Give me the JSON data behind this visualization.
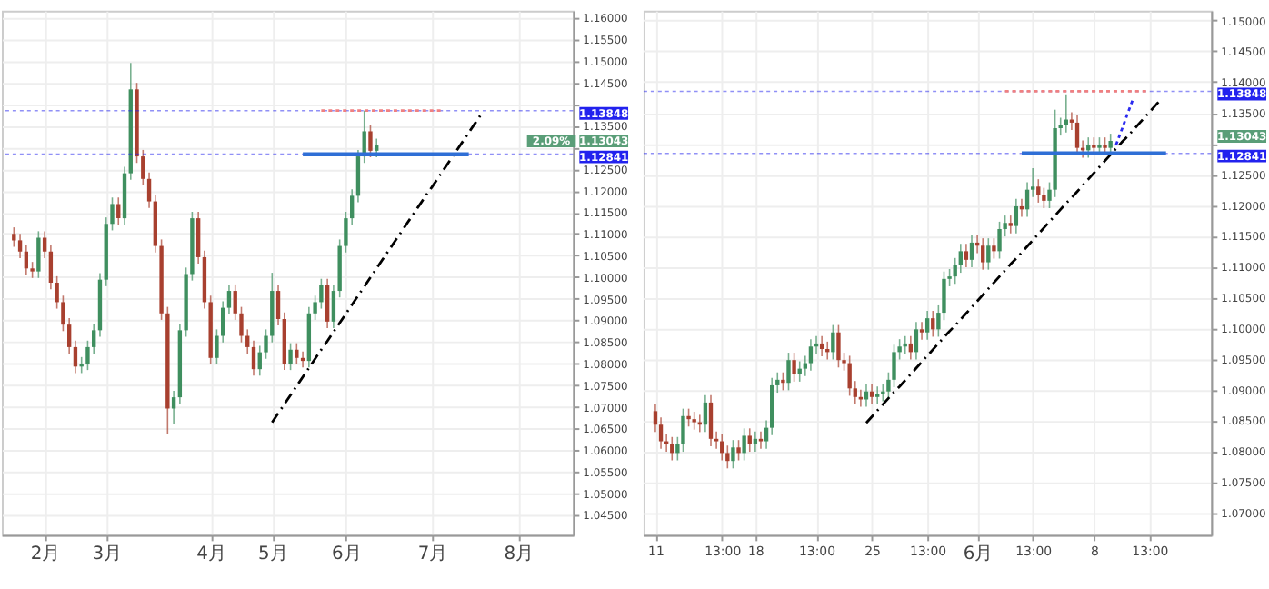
{
  "chart_data": [
    {
      "type": "candlestick",
      "grid": true,
      "categories": [
        null,
        null,
        null,
        null,
        null,
        "2月",
        null,
        null,
        null,
        null,
        null,
        null,
        null,
        null,
        null,
        "3月",
        null,
        null,
        null,
        null,
        null,
        null,
        null,
        null,
        null,
        null,
        null,
        null,
        null,
        null,
        null,
        null,
        "4月",
        null,
        null,
        null,
        null,
        null,
        null,
        null,
        null,
        null,
        "5月",
        null,
        null,
        null,
        null,
        null,
        null,
        null,
        null,
        null,
        null,
        null,
        "6月",
        null,
        null,
        null,
        null,
        null,
        null,
        null,
        null,
        null,
        null,
        null,
        null,
        null,
        "7月",
        null,
        null,
        null,
        null,
        null,
        null,
        null,
        null,
        null,
        null,
        null,
        null,
        null,
        "8月",
        null,
        null,
        null,
        null,
        null,
        null,
        null
      ],
      "ohlc": [
        [
          1.11,
          1.1115,
          1.107,
          1.1085
        ],
        [
          1.1085,
          1.11,
          1.1044,
          1.1059
        ],
        [
          1.1059,
          1.1074,
          1.1005,
          1.102
        ],
        [
          1.102,
          1.1035,
          1.0998,
          1.1013
        ],
        [
          1.1013,
          1.1106,
          1.0998,
          1.1091
        ],
        [
          1.1091,
          1.1106,
          1.1044,
          1.1059
        ],
        [
          1.1059,
          1.1074,
          1.0972,
          1.0987
        ],
        [
          1.0987,
          1.1002,
          1.0927,
          1.0942
        ],
        [
          1.0942,
          1.0957,
          1.0875,
          1.089
        ],
        [
          1.089,
          1.0905,
          1.0823,
          1.0838
        ],
        [
          1.0838,
          1.0853,
          1.0778,
          1.0793
        ],
        [
          1.0793,
          1.0815,
          1.0778,
          1.08
        ],
        [
          1.08,
          1.0853,
          1.0785,
          1.0838
        ],
        [
          1.0838,
          1.0892,
          1.0823,
          1.0877
        ],
        [
          1.0877,
          1.1009,
          1.0862,
          1.0994
        ],
        [
          1.0994,
          1.1138,
          1.0979,
          1.1123
        ],
        [
          1.1123,
          1.1184,
          1.1108,
          1.1169
        ],
        [
          1.1169,
          1.1184,
          1.1121,
          1.1136
        ],
        [
          1.1136,
          1.1255,
          1.1121,
          1.124
        ],
        [
          1.124,
          1.1495,
          1.1225,
          1.1434
        ],
        [
          1.1434,
          1.1449,
          1.1264,
          1.1279
        ],
        [
          1.1279,
          1.1294,
          1.1212,
          1.1227
        ],
        [
          1.1227,
          1.1242,
          1.116,
          1.1175
        ],
        [
          1.1175,
          1.119,
          1.1057,
          1.1072
        ],
        [
          1.1072,
          1.1087,
          1.0901,
          1.0916
        ],
        [
          1.0916,
          1.0931,
          1.0638,
          1.0696
        ],
        [
          1.0696,
          1.0737,
          1.066,
          1.0722
        ],
        [
          1.0722,
          1.0892,
          1.0707,
          1.0877
        ],
        [
          1.0877,
          1.1022,
          1.0862,
          1.1007
        ],
        [
          1.1007,
          1.1151,
          1.0992,
          1.1136
        ],
        [
          1.1136,
          1.1151,
          1.1031,
          1.1046
        ],
        [
          1.1046,
          1.1061,
          1.0927,
          1.0942
        ],
        [
          1.0942,
          1.0957,
          1.0798,
          1.0813
        ],
        [
          1.0813,
          1.0879,
          1.0798,
          1.0864
        ],
        [
          1.0864,
          1.0944,
          1.0849,
          1.0929
        ],
        [
          1.0929,
          1.0983,
          1.0914,
          1.0968
        ],
        [
          1.0968,
          1.0983,
          1.0901,
          1.0916
        ],
        [
          1.0916,
          1.0931,
          1.0849,
          1.0864
        ],
        [
          1.0864,
          1.0879,
          1.0823,
          1.0838
        ],
        [
          1.0838,
          1.0853,
          1.0772,
          1.0787
        ],
        [
          1.0787,
          1.0841,
          1.0772,
          1.0826
        ],
        [
          1.0826,
          1.0879,
          1.0811,
          1.0864
        ],
        [
          1.0864,
          1.101,
          1.0849,
          1.0968
        ],
        [
          1.0968,
          1.0983,
          1.0888,
          1.0903
        ],
        [
          1.0903,
          1.0918,
          1.0785,
          1.08
        ],
        [
          1.08,
          1.0847,
          1.0785,
          1.0832
        ],
        [
          1.0832,
          1.0847,
          1.0798,
          1.0813
        ],
        [
          1.0813,
          1.0828,
          1.0791,
          1.0806
        ],
        [
          1.0806,
          1.0931,
          1.0791,
          1.0916
        ],
        [
          1.0916,
          1.0957,
          1.0901,
          1.0942
        ],
        [
          1.0942,
          1.0996,
          1.0927,
          1.0981
        ],
        [
          1.0981,
          1.0996,
          1.0882,
          1.0897
        ],
        [
          1.0897,
          1.0983,
          1.0882,
          1.0968
        ],
        [
          1.0968,
          1.1087,
          1.0953,
          1.1072
        ],
        [
          1.1072,
          1.1151,
          1.1057,
          1.1136
        ],
        [
          1.1136,
          1.1203,
          1.1121,
          1.1188
        ],
        [
          1.1188,
          1.1294,
          1.1173,
          1.1279
        ],
        [
          1.1279,
          1.1385,
          1.1264,
          1.1337
        ],
        [
          1.1337,
          1.1352,
          1.1277,
          1.1292
        ],
        [
          1.1292,
          1.132,
          1.1277,
          1.13043
        ],
        null,
        null,
        null,
        null,
        null,
        null,
        null,
        null,
        null,
        null,
        null,
        null,
        null,
        null,
        null,
        null,
        null,
        null,
        null,
        null,
        null,
        null,
        null,
        null,
        null,
        null,
        null,
        null,
        null,
        null
      ],
      "ylim": [
        1.0404,
        1.1616
      ],
      "yticks": [
        {
          "value": 1.045,
          "label": "1.04500"
        },
        {
          "value": 1.05,
          "label": "1.05000"
        },
        {
          "value": 1.055,
          "label": "1.05500"
        },
        {
          "value": 1.06,
          "label": "1.06000"
        },
        {
          "value": 1.065,
          "label": "1.06500"
        },
        {
          "value": 1.07,
          "label": "1.07000"
        },
        {
          "value": 1.075,
          "label": "1.07500"
        },
        {
          "value": 1.08,
          "label": "1.08000"
        },
        {
          "value": 1.085,
          "label": "1.08500"
        },
        {
          "value": 1.09,
          "label": "1.09000"
        },
        {
          "value": 1.095,
          "label": "1.09500"
        },
        {
          "value": 1.1,
          "label": "1.10000"
        },
        {
          "value": 1.105,
          "label": "1.10500"
        },
        {
          "value": 1.11,
          "label": "1.11000"
        },
        {
          "value": 1.115,
          "label": "1.11500"
        },
        {
          "value": 1.12,
          "label": "1.12000"
        },
        {
          "value": 1.125,
          "label": "1.12500"
        },
        {
          "value": 1.13,
          "label": null
        },
        {
          "value": 1.135,
          "label": "1.13500"
        },
        {
          "value": 1.14,
          "label": null
        },
        {
          "value": 1.145,
          "label": "1.14500"
        },
        {
          "value": 1.15,
          "label": "1.15000"
        },
        {
          "value": 1.155,
          "label": "1.15500"
        },
        {
          "value": 1.16,
          "label": "1.16000"
        }
      ],
      "series": [
        {
          "type": "line",
          "color": "#000000",
          "line_style": "dashed",
          "values": [
            null,
            null,
            null,
            null,
            null,
            null,
            null,
            null,
            null,
            null,
            null,
            null,
            null,
            null,
            null,
            null,
            null,
            null,
            null,
            null,
            null,
            null,
            null,
            null,
            null,
            null,
            null,
            null,
            null,
            null,
            null,
            null,
            null,
            null,
            null,
            null,
            null,
            null,
            null,
            null,
            null,
            null,
            1.0664,
            1.0685,
            1.0706,
            1.0727,
            1.0748,
            1.0769,
            1.079,
            1.0811,
            1.0832,
            1.0852,
            1.0873,
            1.0894,
            1.0915,
            1.0936,
            1.0957,
            1.0978,
            1.0999,
            1.102,
            1.1041,
            1.1062,
            1.1083,
            1.1104,
            1.1125,
            1.1146,
            1.1167,
            1.1188,
            1.1208,
            1.1229,
            1.125,
            1.1271,
            1.1292,
            1.1313,
            1.1334,
            1.1355,
            1.1376,
            null,
            null,
            null,
            null,
            null,
            null,
            null,
            null,
            null,
            null,
            null,
            null,
            null
          ]
        },
        {
          "type": "line",
          "color": "#f08080",
          "line_style": "dotted",
          "values": [
            null,
            null,
            null,
            null,
            null,
            null,
            null,
            null,
            null,
            null,
            null,
            null,
            null,
            null,
            null,
            null,
            null,
            null,
            null,
            null,
            null,
            null,
            null,
            null,
            null,
            null,
            null,
            null,
            null,
            null,
            null,
            null,
            null,
            null,
            null,
            null,
            null,
            null,
            null,
            null,
            null,
            null,
            null,
            null,
            null,
            null,
            null,
            null,
            null,
            null,
            1.1385,
            1.1385,
            1.1385,
            1.1385,
            1.1385,
            1.1385,
            1.1385,
            1.1385,
            1.1385,
            1.1385,
            1.1385,
            1.1385,
            1.1385,
            1.1385,
            1.1385,
            1.1385,
            1.1385,
            1.1385,
            1.1385,
            1.1385,
            1.1385,
            null,
            null,
            null,
            null,
            null,
            null,
            null,
            null,
            null,
            null,
            null,
            null,
            null,
            null,
            null,
            null,
            null,
            null,
            null
          ]
        },
        {
          "type": "line",
          "color": "#2f6fd6",
          "line_style": "solid",
          "values": [
            null,
            null,
            null,
            null,
            null,
            null,
            null,
            null,
            null,
            null,
            null,
            null,
            null,
            null,
            null,
            null,
            null,
            null,
            null,
            null,
            null,
            null,
            null,
            null,
            null,
            null,
            null,
            null,
            null,
            null,
            null,
            null,
            null,
            null,
            null,
            null,
            null,
            null,
            null,
            null,
            null,
            null,
            null,
            null,
            null,
            null,
            null,
            1.1284,
            1.1284,
            1.1284,
            1.1284,
            1.1284,
            1.1284,
            1.1284,
            1.1284,
            1.1284,
            1.1284,
            1.1284,
            1.1284,
            1.1284,
            1.1284,
            1.1284,
            1.1284,
            1.1284,
            1.1284,
            1.1284,
            1.1284,
            1.1284,
            1.1284,
            1.1284,
            1.1284,
            1.1284,
            1.1284,
            1.1284,
            1.1284,
            null,
            null,
            null,
            null,
            null,
            null,
            null,
            null,
            null,
            null,
            null,
            null,
            null,
            null,
            null
          ]
        }
      ],
      "ref_lines": [
        {
          "axis": "y",
          "value": 1.13848,
          "label": "1.13848",
          "color": "#2222ee",
          "line_style": "dotted"
        },
        {
          "axis": "y",
          "value": 1.12841,
          "label": "1.12841",
          "color": "#2222ee",
          "line_style": "dotted"
        }
      ],
      "annotations": [
        "2.09%",
        "1.13043"
      ]
    },
    {
      "type": "candlestick",
      "grid": true,
      "categories": [
        "11",
        null,
        null,
        null,
        null,
        null,
        null,
        null,
        null,
        null,
        null,
        null,
        "13:00",
        null,
        null,
        null,
        null,
        null,
        "18",
        null,
        null,
        null,
        null,
        null,
        null,
        null,
        null,
        null,
        null,
        "13:00",
        null,
        null,
        null,
        null,
        null,
        null,
        null,
        null,
        null,
        "25",
        null,
        null,
        null,
        null,
        null,
        null,
        null,
        null,
        null,
        "13:00",
        null,
        null,
        null,
        null,
        null,
        null,
        null,
        null,
        "6月",
        null,
        null,
        null,
        null,
        null,
        null,
        null,
        null,
        null,
        "13:00",
        null,
        null,
        null,
        null,
        null,
        null,
        null,
        null,
        null,
        null,
        "8",
        null,
        null,
        null,
        null,
        null,
        null,
        null,
        null,
        null,
        "13:00",
        null,
        null,
        null,
        null,
        null,
        null,
        null,
        null,
        null
      ],
      "ohlc": [
        [
          1.0865,
          1.0877,
          1.0831,
          1.0843
        ],
        [
          1.0843,
          1.0855,
          1.0804,
          1.0816
        ],
        [
          1.0816,
          1.0828,
          1.0799,
          1.0811
        ],
        [
          1.0811,
          1.0823,
          1.0785,
          1.0797
        ],
        [
          1.0797,
          1.0823,
          1.0785,
          1.0811
        ],
        [
          1.0811,
          1.0869,
          1.0799,
          1.0857
        ],
        [
          1.0857,
          1.0869,
          1.084,
          1.0852
        ],
        [
          1.0852,
          1.0864,
          1.0835,
          1.0847
        ],
        [
          1.0847,
          1.0859,
          1.0831,
          1.0843
        ],
        [
          1.0843,
          1.0891,
          1.0831,
          1.0879
        ],
        [
          1.0879,
          1.0891,
          1.0808,
          1.082
        ],
        [
          1.082,
          1.0832,
          1.0804,
          1.0816
        ],
        [
          1.0816,
          1.0828,
          1.0785,
          1.0797
        ],
        [
          1.0797,
          1.0809,
          1.0772,
          1.0784
        ],
        [
          1.0784,
          1.0818,
          1.0772,
          1.0806
        ],
        [
          1.0806,
          1.0818,
          1.0785,
          1.0797
        ],
        [
          1.0797,
          1.0837,
          1.0785,
          1.0825
        ],
        [
          1.0825,
          1.0837,
          1.0799,
          1.0811
        ],
        [
          1.0811,
          1.0832,
          1.0799,
          1.082
        ],
        [
          1.082,
          1.0832,
          1.0804,
          1.0816
        ],
        [
          1.0816,
          1.085,
          1.0804,
          1.0838
        ],
        [
          1.0838,
          1.0919,
          1.0826,
          1.0907
        ],
        [
          1.0907,
          1.0928,
          1.0895,
          1.0916
        ],
        [
          1.0916,
          1.0928,
          1.0899,
          1.0911
        ],
        [
          1.0911,
          1.096,
          1.0899,
          1.0948
        ],
        [
          1.0948,
          1.096,
          1.0913,
          1.0925
        ],
        [
          1.0925,
          1.0946,
          1.0913,
          1.0934
        ],
        [
          1.0934,
          1.0955,
          1.0922,
          1.0943
        ],
        [
          1.0943,
          1.0982,
          1.0931,
          1.097
        ],
        [
          1.097,
          1.0987,
          1.0958,
          1.0975
        ],
        [
          1.0975,
          1.0987,
          1.0954,
          1.0966
        ],
        [
          1.0966,
          1.0978,
          1.0949,
          1.0961
        ],
        [
          1.0961,
          1.1005,
          1.0949,
          1.0993
        ],
        [
          1.0993,
          1.1005,
          1.0936,
          1.0948
        ],
        [
          1.0948,
          1.096,
          1.0931,
          1.0943
        ],
        [
          1.0943,
          1.0955,
          1.089,
          1.0902
        ],
        [
          1.0902,
          1.0914,
          1.0876,
          1.0888
        ],
        [
          1.0888,
          1.09,
          1.0872,
          1.0884
        ],
        [
          1.0884,
          1.0909,
          1.0872,
          1.0897
        ],
        [
          1.0897,
          1.0909,
          1.0876,
          1.0888
        ],
        [
          1.0888,
          1.0905,
          1.0876,
          1.0893
        ],
        [
          1.0893,
          1.0909,
          1.0881,
          1.0897
        ],
        [
          1.0897,
          1.0928,
          1.0885,
          1.0916
        ],
        [
          1.0916,
          1.0973,
          1.0904,
          1.0961
        ],
        [
          1.0961,
          1.0982,
          1.0949,
          1.097
        ],
        [
          1.097,
          1.0987,
          1.0958,
          1.0975
        ],
        [
          1.0975,
          1.0987,
          1.0949,
          1.0961
        ],
        [
          1.0961,
          1.101,
          1.0949,
          1.0998
        ],
        [
          1.0998,
          1.101,
          1.0981,
          1.0993
        ],
        [
          1.0993,
          1.1028,
          1.0981,
          1.1016
        ],
        [
          1.1016,
          1.1028,
          1.0986,
          1.0998
        ],
        [
          1.0998,
          1.1037,
          1.0986,
          1.1025
        ],
        [
          1.1025,
          1.1092,
          1.1013,
          1.108
        ],
        [
          1.108,
          1.1096,
          1.1068,
          1.1084
        ],
        [
          1.1084,
          1.1114,
          1.1072,
          1.1102
        ],
        [
          1.1102,
          1.1137,
          1.109,
          1.1125
        ],
        [
          1.1125,
          1.1137,
          1.1099,
          1.1111
        ],
        [
          1.1111,
          1.1151,
          1.1099,
          1.1139
        ],
        [
          1.1139,
          1.1151,
          1.1122,
          1.1134
        ],
        [
          1.1134,
          1.1146,
          1.1095,
          1.1107
        ],
        [
          1.1107,
          1.1146,
          1.1095,
          1.1134
        ],
        [
          1.1134,
          1.1146,
          1.1113,
          1.1125
        ],
        [
          1.1125,
          1.1173,
          1.1113,
          1.1161
        ],
        [
          1.1161,
          1.1183,
          1.1149,
          1.1171
        ],
        [
          1.1171,
          1.1183,
          1.1154,
          1.1166
        ],
        [
          1.1166,
          1.121,
          1.1154,
          1.1198
        ],
        [
          1.1198,
          1.121,
          1.1181,
          1.1193
        ],
        [
          1.1193,
          1.1237,
          1.1181,
          1.1225
        ],
        [
          1.1225,
          1.126,
          1.1213,
          1.123
        ],
        [
          1.123,
          1.1242,
          1.1204,
          1.1216
        ],
        [
          1.1216,
          1.1228,
          1.1195,
          1.1207
        ],
        [
          1.1207,
          1.1237,
          1.1195,
          1.1225
        ],
        [
          1.1225,
          1.1355,
          1.1213,
          1.1325
        ],
        [
          1.1325,
          1.1342,
          1.1313,
          1.133
        ],
        [
          1.133,
          1.138,
          1.1318,
          1.1339
        ],
        [
          1.1339,
          1.1351,
          1.1322,
          1.1334
        ],
        [
          1.1334,
          1.1346,
          1.1281,
          1.1293
        ],
        [
          1.1293,
          1.1305,
          1.1277,
          1.1289
        ],
        [
          1.1289,
          1.131,
          1.1277,
          1.1298
        ],
        [
          1.1298,
          1.131,
          1.1281,
          1.1293
        ],
        [
          1.1293,
          1.131,
          1.1281,
          1.1298
        ],
        [
          1.1298,
          1.131,
          1.1281,
          1.1293
        ],
        [
          1.1293,
          1.1316,
          1.1281,
          1.13043
        ],
        null,
        null,
        null,
        null,
        null,
        null,
        null,
        null,
        null,
        null,
        null,
        null,
        null,
        null,
        null,
        null
      ],
      "ylim": [
        1.0664,
        1.1516
      ],
      "yticks": [
        {
          "value": 1.07,
          "label": "1.07000"
        },
        {
          "value": 1.075,
          "label": "1.07500"
        },
        {
          "value": 1.08,
          "label": "1.08000"
        },
        {
          "value": 1.085,
          "label": "1.08500"
        },
        {
          "value": 1.09,
          "label": "1.09000"
        },
        {
          "value": 1.095,
          "label": "1.09500"
        },
        {
          "value": 1.1,
          "label": "1.10000"
        },
        {
          "value": 1.105,
          "label": "1.10500"
        },
        {
          "value": 1.11,
          "label": "1.11000"
        },
        {
          "value": 1.115,
          "label": "1.11500"
        },
        {
          "value": 1.12,
          "label": "1.12000"
        },
        {
          "value": 1.125,
          "label": "1.12500"
        },
        {
          "value": 1.13,
          "label": null
        },
        {
          "value": 1.135,
          "label": "1.13500"
        },
        {
          "value": 1.14,
          "label": "1.14000"
        },
        {
          "value": 1.145,
          "label": "1.14500"
        },
        {
          "value": 1.15,
          "label": "1.15000"
        }
      ],
      "series": [
        {
          "type": "line",
          "color": "#000000",
          "line_style": "dashed",
          "values": [
            null,
            null,
            null,
            null,
            null,
            null,
            null,
            null,
            null,
            null,
            null,
            null,
            null,
            null,
            null,
            null,
            null,
            null,
            null,
            null,
            null,
            null,
            null,
            null,
            null,
            null,
            null,
            null,
            null,
            null,
            null,
            null,
            null,
            null,
            null,
            null,
            null,
            null,
            1.0846,
            1.0856,
            1.0866,
            1.0876,
            1.0886,
            1.0896,
            1.0905,
            1.0915,
            1.0925,
            1.0935,
            1.0945,
            1.0955,
            1.0965,
            1.0975,
            1.0985,
            1.0995,
            1.1004,
            1.1014,
            1.1024,
            1.1034,
            1.1044,
            1.1054,
            1.1064,
            1.1074,
            1.1084,
            1.1094,
            1.1104,
            1.1113,
            1.1123,
            1.1133,
            1.1143,
            1.1153,
            1.1163,
            1.1173,
            1.1183,
            1.1193,
            1.1203,
            1.1212,
            1.1222,
            1.1232,
            1.1242,
            1.1252,
            1.1262,
            1.1272,
            1.1282,
            1.1292,
            1.1302,
            1.1311,
            1.1321,
            1.1331,
            1.1341,
            1.1351,
            1.1361,
            1.1371,
            null,
            null,
            null,
            null,
            null,
            null,
            null
          ]
        },
        {
          "type": "line",
          "color": "#f08080",
          "line_style": "dotted",
          "values": [
            null,
            null,
            null,
            null,
            null,
            null,
            null,
            null,
            null,
            null,
            null,
            null,
            null,
            null,
            null,
            null,
            null,
            null,
            null,
            null,
            null,
            null,
            null,
            null,
            null,
            null,
            null,
            null,
            null,
            null,
            null,
            null,
            null,
            null,
            null,
            null,
            null,
            null,
            null,
            null,
            null,
            null,
            null,
            null,
            null,
            null,
            null,
            null,
            null,
            null,
            null,
            null,
            null,
            null,
            null,
            null,
            null,
            null,
            null,
            null,
            null,
            null,
            null,
            1.1385,
            1.1385,
            1.1385,
            1.1385,
            1.1385,
            1.1385,
            1.1385,
            1.1385,
            1.1385,
            1.1385,
            1.1385,
            1.1385,
            1.1385,
            1.1385,
            1.1385,
            1.1385,
            1.1385,
            1.1385,
            1.1385,
            1.1385,
            1.1385,
            1.1385,
            1.1385,
            1.1385,
            1.1385,
            1.1385,
            1.1385,
            null,
            null,
            null,
            null,
            null,
            null,
            null,
            null,
            null
          ]
        },
        {
          "type": "line",
          "color": "#2f6fd6",
          "line_style": "solid",
          "values": [
            null,
            null,
            null,
            null,
            null,
            null,
            null,
            null,
            null,
            null,
            null,
            null,
            null,
            null,
            null,
            null,
            null,
            null,
            null,
            null,
            null,
            null,
            null,
            null,
            null,
            null,
            null,
            null,
            null,
            null,
            null,
            null,
            null,
            null,
            null,
            null,
            null,
            null,
            null,
            null,
            null,
            null,
            null,
            null,
            null,
            null,
            null,
            null,
            null,
            null,
            null,
            null,
            null,
            null,
            null,
            null,
            null,
            null,
            null,
            null,
            null,
            null,
            null,
            null,
            null,
            null,
            1.1284,
            1.1284,
            1.1284,
            1.1284,
            1.1284,
            1.1284,
            1.1284,
            1.1284,
            1.1284,
            1.1284,
            1.1284,
            1.1284,
            1.1284,
            1.1284,
            1.1284,
            1.1284,
            1.1284,
            1.1284,
            1.1284,
            1.1284,
            1.1284,
            1.1284,
            1.1284,
            1.1284,
            1.1284,
            1.1284,
            1.1284,
            null,
            null,
            null,
            null,
            null,
            null
          ]
        },
        {
          "type": "line",
          "color": "#2a2af0",
          "line_style": "dotted",
          "values": [
            null,
            null,
            null,
            null,
            null,
            null,
            null,
            null,
            null,
            null,
            null,
            null,
            null,
            null,
            null,
            null,
            null,
            null,
            null,
            null,
            null,
            null,
            null,
            null,
            null,
            null,
            null,
            null,
            null,
            null,
            null,
            null,
            null,
            null,
            null,
            null,
            null,
            null,
            null,
            null,
            null,
            null,
            null,
            null,
            null,
            null,
            null,
            null,
            null,
            null,
            null,
            null,
            null,
            null,
            null,
            null,
            null,
            null,
            null,
            null,
            null,
            null,
            null,
            null,
            null,
            null,
            null,
            null,
            null,
            null,
            null,
            null,
            null,
            null,
            null,
            null,
            null,
            null,
            null,
            null,
            null,
            null,
            null,
            1.1298,
            1.1322,
            1.1347,
            1.1371,
            null,
            null,
            null,
            null,
            null,
            null,
            null,
            null,
            null,
            null,
            null,
            null
          ]
        }
      ],
      "ref_lines": [
        {
          "axis": "y",
          "value": 1.13848,
          "label": "1.13848",
          "color": "#2222ee",
          "line_style": "dotted"
        },
        {
          "axis": "y",
          "value": 1.12841,
          "label": "1.12841",
          "color": "#2222ee",
          "line_style": "dotted"
        }
      ],
      "annotations": [
        "1.13043"
      ]
    }
  ]
}
